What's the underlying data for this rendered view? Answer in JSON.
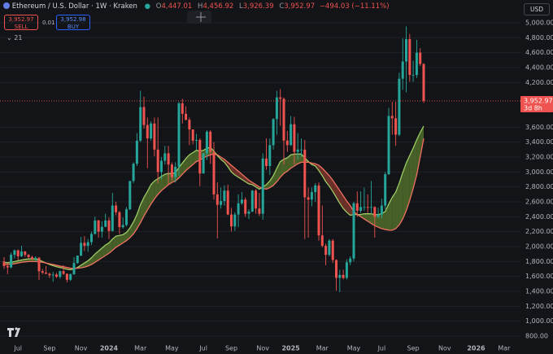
{
  "header": {
    "symbol": "Ethereum / U.S. Dollar · 1W · Kraken",
    "ohlc": [
      {
        "label": "O",
        "value": "4,447.01"
      },
      {
        "label": "H",
        "value": "4,456.92"
      },
      {
        "label": "L",
        "value": "3,926.39"
      },
      {
        "label": "C",
        "value": "3,952.97"
      }
    ],
    "change": "−494.03 (−11.11%)",
    "currency": "USD",
    "sell": {
      "price": "3,952.97",
      "label": "SELL"
    },
    "spread": "0.01",
    "buy": {
      "price": "3,952.98",
      "label": "BUY"
    },
    "indicators": "21",
    "price_tag": {
      "price": "3,952.97",
      "countdown": "3d 8h"
    }
  },
  "chart_data": {
    "type": "candlestick",
    "up_color": "#26a69a",
    "down_color": "#ef5350",
    "grid": true,
    "ylim": [
      724,
      5305
    ],
    "yticks": [
      {
        "value": 800,
        "label": "800.00"
      },
      {
        "value": 1000,
        "label": "1,000.00"
      },
      {
        "value": 1200,
        "label": "1,200.00"
      },
      {
        "value": 1400,
        "label": "1,400.00"
      },
      {
        "value": 1600,
        "label": "1,600.00"
      },
      {
        "value": 1800,
        "label": "1,800.00"
      },
      {
        "value": 2000,
        "label": "2,000.00"
      },
      {
        "value": 2200,
        "label": "2,200.00"
      },
      {
        "value": 2400,
        "label": "2,400.00"
      },
      {
        "value": 2600,
        "label": "2,600.00"
      },
      {
        "value": 2800,
        "label": "2,800.00"
      },
      {
        "value": 3000,
        "label": "3,000.00"
      },
      {
        "value": 3200,
        "label": "3,200.00"
      },
      {
        "value": 3400,
        "label": "3,400.00"
      },
      {
        "value": 3600,
        "label": "3,600.00"
      },
      {
        "value": 4200,
        "label": "4,200.00"
      },
      {
        "value": 4400,
        "label": "4,400.00"
      },
      {
        "value": 4600,
        "label": "4,600.00"
      },
      {
        "value": 4800,
        "label": "4,800.00"
      },
      {
        "value": 5000,
        "label": "5,000.00"
      }
    ],
    "categories": [
      null,
      null,
      null,
      null,
      "Jul",
      null,
      null,
      null,
      null,
      null,
      null,
      null,
      null,
      "Sep",
      null,
      null,
      null,
      null,
      null,
      null,
      null,
      null,
      "Nov",
      null,
      null,
      null,
      null,
      null,
      null,
      null,
      "2024",
      null,
      null,
      null,
      null,
      null,
      null,
      null,
      null,
      "Mar",
      null,
      null,
      null,
      null,
      null,
      null,
      null,
      null,
      "May",
      null,
      null,
      null,
      null,
      null,
      null,
      null,
      null,
      "Jul",
      null,
      null,
      null,
      null,
      null,
      null,
      null,
      "Sep",
      null,
      null,
      null,
      null,
      null,
      null,
      null,
      null,
      "Nov",
      null,
      null,
      null,
      null,
      null,
      null,
      null,
      "2025",
      null,
      null,
      null,
      null,
      null,
      null,
      null,
      null,
      "Mar",
      null,
      null,
      null,
      null,
      null,
      null,
      null,
      null,
      "May",
      null,
      null,
      null,
      null,
      null,
      null,
      null,
      "Jul",
      null,
      null,
      null,
      null,
      null,
      null,
      null,
      null,
      "Sep",
      null,
      null,
      null,
      null,
      null,
      null,
      null,
      null,
      "Nov",
      null,
      null,
      null,
      null,
      null,
      null,
      null,
      null,
      "2026",
      null,
      null,
      null,
      null,
      null,
      null,
      null,
      "Mar",
      null,
      null,
      null,
      null
    ],
    "open": [
      1800,
      1740,
      1720,
      1890,
      1950,
      1870,
      1935,
      1890,
      1860,
      1830,
      1850,
      1670,
      1650,
      1635,
      1615,
      1625,
      1595,
      1670,
      1635,
      1555,
      1630,
      1780,
      1880,
      2050,
      2010,
      2060,
      2170,
      2350,
      2200,
      2265,
      2350,
      2210,
      2550,
      2460,
      2260,
      2290,
      2500,
      2880,
      3110,
      3420,
      3870,
      3630,
      3450,
      3650,
      3300,
      3000,
      3150,
      3250,
      3100,
      2930,
      3070,
      3920,
      3780,
      3700,
      3570,
      3420,
      3430,
      2980,
      3250,
      3540,
      3270,
      2700,
      2560,
      2610,
      2750,
      2430,
      2270,
      2430,
      2580,
      2630,
      2440,
      2470,
      2750,
      2510,
      2440,
      3180,
      3080,
      3360,
      3710,
      4000,
      3980,
      3420,
      3360,
      3640,
      3270,
      3300,
      3300,
      2660,
      2630,
      2730,
      2820,
      2150,
      2010,
      1890,
      2080,
      1820,
      1580,
      1620,
      1580,
      1790,
      1840,
      2580,
      2480,
      2530,
      2530,
      2520,
      2530,
      2400,
      2430,
      2550,
      2970,
      3750,
      3720,
      3500,
      4250,
      4480,
      4780,
      4300,
      4300,
      4600,
      4447.01,
      null,
      null,
      null,
      null,
      null,
      null,
      null,
      null,
      null,
      null,
      null,
      null,
      null,
      null,
      null,
      null,
      null,
      null,
      null,
      null,
      null,
      null,
      null,
      null,
      null,
      null,
      null
    ],
    "high": [
      1860,
      1780,
      1920,
      1960,
      1960,
      2010,
      1940,
      1900,
      1880,
      1870,
      1860,
      1700,
      1740,
      1650,
      1660,
      1650,
      1680,
      1750,
      1640,
      1640,
      1860,
      1880,
      2130,
      2140,
      2100,
      2200,
      2400,
      2360,
      2340,
      2440,
      2390,
      2720,
      2600,
      2480,
      2390,
      2530,
      2880,
      3130,
      3520,
      4090,
      4010,
      3730,
      3680,
      3730,
      3730,
      3200,
      3350,
      3350,
      3130,
      3130,
      3940,
      3980,
      3880,
      3730,
      3570,
      3510,
      3450,
      3250,
      3560,
      3560,
      3400,
      2860,
      2790,
      2820,
      2830,
      2520,
      2460,
      2700,
      2730,
      2660,
      2500,
      2760,
      2770,
      2720,
      3250,
      3450,
      3450,
      3720,
      4090,
      4110,
      4000,
      3550,
      3750,
      3740,
      3520,
      3450,
      3430,
      2790,
      2790,
      2850,
      2860,
      2550,
      2040,
      2100,
      2100,
      1830,
      1690,
      1690,
      1830,
      1870,
      2600,
      2740,
      2740,
      2790,
      2700,
      2880,
      2540,
      2520,
      2640,
      3000,
      3860,
      3940,
      3940,
      4330,
      4790,
      4950,
      4850,
      4490,
      4770,
      4660,
      4456.92,
      null,
      null,
      null,
      null,
      null,
      null,
      null,
      null,
      null,
      null,
      null,
      null,
      null,
      null,
      null,
      null,
      null,
      null,
      null,
      null,
      null,
      null,
      null,
      null,
      null,
      null,
      null
    ],
    "low": [
      1700,
      1630,
      1710,
      1840,
      1820,
      1860,
      1860,
      1840,
      1820,
      1800,
      1550,
      1630,
      1630,
      1580,
      1530,
      1580,
      1570,
      1620,
      1520,
      1540,
      1620,
      1770,
      1870,
      1940,
      1930,
      2020,
      2160,
      2120,
      2120,
      2260,
      2100,
      2200,
      2420,
      2170,
      2240,
      2270,
      2490,
      2850,
      3080,
      3400,
      3580,
      3050,
      3420,
      3210,
      2850,
      2900,
      3100,
      2820,
      2880,
      2860,
      2950,
      3650,
      3690,
      3360,
      3370,
      3300,
      2810,
      2980,
      3160,
      3110,
      2630,
      2110,
      2510,
      2550,
      2420,
      2200,
      2210,
      2260,
      2560,
      2400,
      2370,
      2460,
      2440,
      2410,
      2360,
      3030,
      2960,
      3300,
      3500,
      3620,
      3100,
      3270,
      3350,
      3100,
      3160,
      3200,
      2100,
      2120,
      2540,
      2600,
      2080,
      1990,
      1750,
      1870,
      1780,
      1410,
      1390,
      1560,
      1560,
      1750,
      1800,
      2400,
      2450,
      2480,
      2450,
      2440,
      2120,
      2380,
      2380,
      2500,
      2960,
      3500,
      3350,
      3480,
      4100,
      4070,
      4210,
      4210,
      4260,
      4420,
      3926.39,
      null,
      null,
      null,
      null,
      null,
      null,
      null,
      null,
      null,
      null,
      null,
      null,
      null,
      null,
      null,
      null,
      null,
      null,
      null,
      null,
      null,
      null,
      null,
      null,
      null,
      null,
      null
    ],
    "close": [
      1740,
      1720,
      1890,
      1950,
      1870,
      1935,
      1890,
      1860,
      1830,
      1850,
      1670,
      1650,
      1635,
      1615,
      1625,
      1595,
      1670,
      1635,
      1555,
      1630,
      1780,
      1880,
      2050,
      2010,
      2060,
      2170,
      2350,
      2200,
      2265,
      2350,
      2210,
      2550,
      2460,
      2260,
      2290,
      2500,
      2880,
      3110,
      3420,
      3870,
      3630,
      3450,
      3650,
      3300,
      3000,
      3150,
      3250,
      3100,
      2930,
      3070,
      3920,
      3780,
      3700,
      3570,
      3420,
      3430,
      2980,
      3250,
      3540,
      3270,
      2700,
      2560,
      2610,
      2750,
      2430,
      2270,
      2430,
      2580,
      2630,
      2440,
      2470,
      2750,
      2510,
      2440,
      3180,
      3080,
      3360,
      3710,
      4000,
      3980,
      3420,
      3360,
      3640,
      3270,
      3300,
      3300,
      2660,
      2630,
      2730,
      2820,
      2150,
      2010,
      1890,
      2080,
      1820,
      1580,
      1620,
      1580,
      1790,
      1840,
      2580,
      2480,
      2530,
      2530,
      2520,
      2530,
      2400,
      2430,
      2550,
      2970,
      3750,
      3720,
      3500,
      4250,
      4480,
      4780,
      4300,
      4300,
      4600,
      4447.01,
      3952.97,
      null,
      null,
      null,
      null,
      null,
      null,
      null,
      null,
      null,
      null,
      null,
      null,
      null,
      null,
      null,
      null,
      null,
      null,
      null,
      null,
      null,
      null,
      null,
      null,
      null,
      null,
      null
    ],
    "indicator": {
      "fill_colors": [
        "#5a7a2e",
        "#8a3a2e"
      ],
      "lines": [
        {
          "color": "#9ccc65",
          "values": [
            1790,
            1785,
            1790,
            1800,
            1810,
            1820,
            1830,
            1835,
            1835,
            1835,
            1820,
            1800,
            1780,
            1760,
            1745,
            1730,
            1720,
            1710,
            1695,
            1690,
            1700,
            1720,
            1750,
            1780,
            1810,
            1850,
            1900,
            1940,
            1980,
            2020,
            2050,
            2100,
            2140,
            2150,
            2160,
            2190,
            2250,
            2330,
            2430,
            2560,
            2660,
            2740,
            2830,
            2880,
            2910,
            2940,
            2970,
            2980,
            2980,
            2990,
            3060,
            3120,
            3180,
            3230,
            3260,
            3290,
            3280,
            3290,
            3320,
            3330,
            3280,
            3220,
            3170,
            3130,
            3070,
            3000,
            2960,
            2930,
            2900,
            2870,
            2840,
            2830,
            2800,
            2770,
            2800,
            2830,
            2880,
            2950,
            3050,
            3140,
            3170,
            3190,
            3230,
            3240,
            3240,
            3240,
            3190,
            3140,
            3100,
            3080,
            3020,
            2950,
            2870,
            2810,
            2740,
            2660,
            2580,
            2510,
            2460,
            2420,
            2430,
            2430,
            2430,
            2440,
            2440,
            2440,
            2430,
            2430,
            2440,
            2470,
            2570,
            2660,
            2730,
            2850,
            2990,
            3120,
            3220,
            3320,
            3430,
            3530,
            3615,
            null,
            null,
            null,
            null,
            null,
            null,
            null,
            null,
            null,
            null,
            null,
            null,
            null,
            null,
            null,
            null,
            null,
            null,
            null,
            null,
            null,
            null,
            null,
            null,
            null,
            null,
            null
          ]
        },
        {
          "color": "#f07060",
          "values": [
            1760,
            1760,
            1765,
            1770,
            1780,
            1790,
            1795,
            1800,
            1800,
            1800,
            1795,
            1790,
            1780,
            1770,
            1760,
            1750,
            1740,
            1730,
            1720,
            1710,
            1710,
            1710,
            1715,
            1725,
            1740,
            1760,
            1790,
            1820,
            1850,
            1880,
            1910,
            1950,
            1990,
            2020,
            2050,
            2080,
            2120,
            2170,
            2240,
            2320,
            2410,
            2490,
            2570,
            2640,
            2700,
            2750,
            2790,
            2830,
            2860,
            2880,
            2920,
            2970,
            3020,
            3060,
            3100,
            3140,
            3160,
            3190,
            3210,
            3230,
            3240,
            3230,
            3200,
            3170,
            3130,
            3090,
            3050,
            3010,
            2970,
            2930,
            2890,
            2860,
            2830,
            2800,
            2780,
            2770,
            2790,
            2820,
            2870,
            2930,
            2980,
            3010,
            3050,
            3080,
            3110,
            3130,
            3130,
            3130,
            3120,
            3110,
            3090,
            3050,
            3000,
            2950,
            2890,
            2820,
            2750,
            2680,
            2610,
            2550,
            2470,
            2430,
            2400,
            2370,
            2340,
            2310,
            2280,
            2260,
            2240,
            2230,
            2220,
            2220,
            2240,
            2290,
            2370,
            2480,
            2620,
            2780,
            2960,
            3200,
            3450,
            null,
            null,
            null,
            null,
            null,
            null,
            null,
            null,
            null,
            null,
            null,
            null,
            null,
            null,
            null,
            null,
            null,
            null,
            null,
            null,
            null,
            null,
            null,
            null,
            null,
            null,
            null
          ]
        }
      ]
    }
  }
}
